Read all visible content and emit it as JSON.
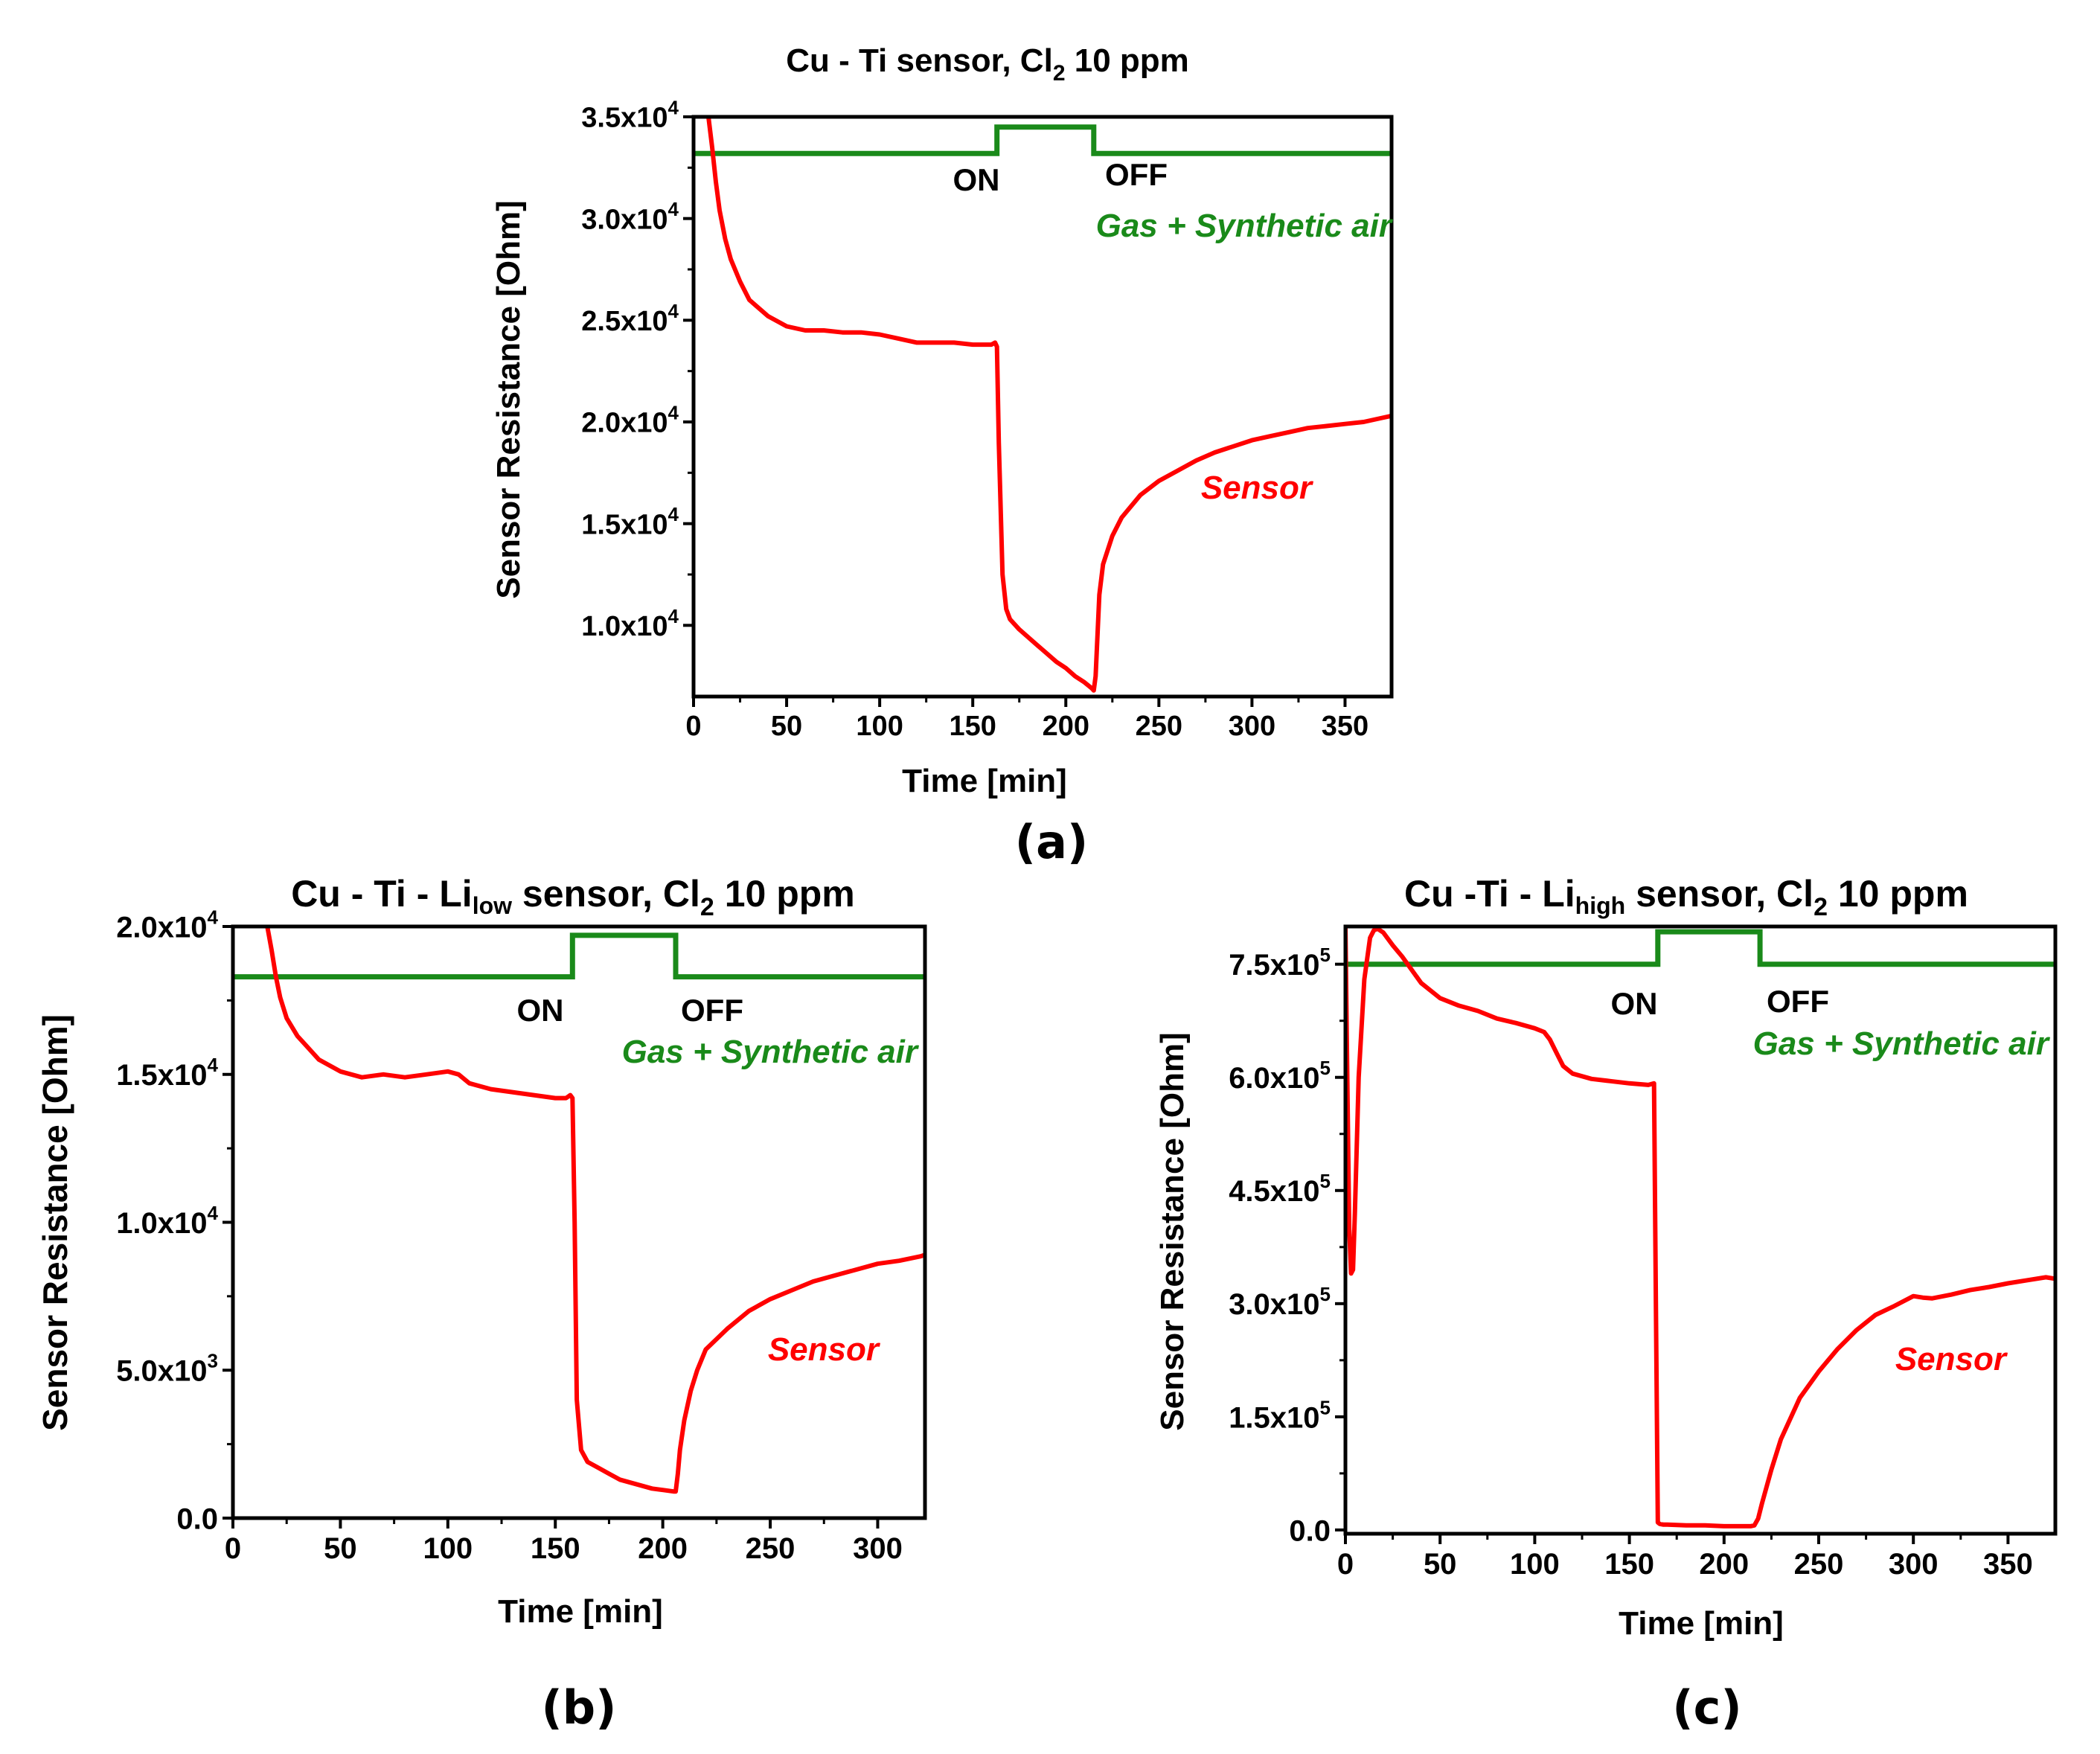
{
  "colors": {
    "sensor": "#ff0000",
    "gas": "#1a8a1a",
    "axis": "#000000",
    "background": "#ffffff"
  },
  "chart_data": [
    {
      "id": "a",
      "type": "line",
      "panel_label": "(a)",
      "title_main": "Cu - Ti sensor, Cl",
      "title_sub": "2",
      "title_tail": " 10 ppm",
      "xlabel": "Time [min]",
      "ylabel": "Sensor Resistance [Ohm]",
      "xlim": [
        0,
        375
      ],
      "ylim": [
        6500,
        35000
      ],
      "xticks": [
        0,
        50,
        100,
        150,
        200,
        250,
        300,
        350
      ],
      "xtick_labels": [
        "0",
        "50",
        "100",
        "150",
        "200",
        "250",
        "300",
        "350"
      ],
      "yticks": [
        10000,
        15000,
        20000,
        25000,
        30000,
        35000
      ],
      "ytick_labels": [
        {
          "mant": "1.0x10",
          "exp": "4"
        },
        {
          "mant": "1.5x10",
          "exp": "4"
        },
        {
          "mant": "2.0x10",
          "exp": "4"
        },
        {
          "mant": "2.5x10",
          "exp": "4"
        },
        {
          "mant": "3.0x10",
          "exp": "4"
        },
        {
          "mant": "3.5x10",
          "exp": "4"
        }
      ],
      "annotations": {
        "on": "ON",
        "off": "OFF",
        "gas": "Gas + Synthetic air",
        "sensor": "Sensor"
      },
      "gas_level_low": 33200,
      "gas_level_high": 34500,
      "gas_on": 163,
      "gas_off": 215,
      "series": [
        {
          "name": "Sensor",
          "x": [
            8,
            10,
            12,
            14,
            17,
            20,
            25,
            30,
            40,
            50,
            60,
            70,
            80,
            90,
            100,
            110,
            120,
            130,
            140,
            150,
            155,
            160,
            162,
            163,
            164,
            166,
            168,
            170,
            175,
            180,
            185,
            190,
            195,
            200,
            205,
            210,
            214,
            215,
            216,
            217,
            218,
            220,
            225,
            230,
            240,
            250,
            260,
            270,
            280,
            290,
            300,
            310,
            320,
            330,
            340,
            350,
            360,
            370,
            375
          ],
          "y": [
            35000,
            33500,
            31800,
            30400,
            29000,
            28000,
            26900,
            26000,
            25200,
            24700,
            24500,
            24500,
            24400,
            24400,
            24300,
            24100,
            23900,
            23900,
            23900,
            23800,
            23800,
            23800,
            23900,
            23700,
            19000,
            12500,
            10800,
            10300,
            9800,
            9400,
            9000,
            8600,
            8200,
            7900,
            7500,
            7200,
            6900,
            6800,
            7500,
            9500,
            11500,
            13000,
            14400,
            15300,
            16400,
            17100,
            17600,
            18100,
            18500,
            18800,
            19100,
            19300,
            19500,
            19700,
            19800,
            19900,
            20000,
            20200,
            20300
          ]
        }
      ]
    },
    {
      "id": "b",
      "type": "line",
      "panel_label": "(b)",
      "title_main": "Cu - Ti - Li",
      "title_sub": "low",
      "title_mid": " sensor, Cl",
      "title_sub2": "2",
      "title_tail": " 10 ppm",
      "xlabel": "Time [min]",
      "ylabel": "Sensor Resistance [Ohm]",
      "xlim": [
        0,
        322
      ],
      "ylim": [
        0,
        20000
      ],
      "xticks": [
        0,
        50,
        100,
        150,
        200,
        250,
        300
      ],
      "xtick_labels": [
        "0",
        "50",
        "100",
        "150",
        "200",
        "250",
        "300"
      ],
      "yticks": [
        0,
        5000,
        10000,
        15000,
        20000
      ],
      "ytick_labels": [
        {
          "mant": "0.0",
          "exp": ""
        },
        {
          "mant": "5.0x10",
          "exp": "3"
        },
        {
          "mant": "1.0x10",
          "exp": "4"
        },
        {
          "mant": "1.5x10",
          "exp": "4"
        },
        {
          "mant": "2.0x10",
          "exp": "4"
        }
      ],
      "annotations": {
        "on": "ON",
        "off": "OFF",
        "gas": "Gas + Synthetic air",
        "sensor": "Sensor"
      },
      "gas_level_low": 18300,
      "gas_level_high": 19700,
      "gas_on": 158,
      "gas_off": 206,
      "series": [
        {
          "name": "Sensor",
          "x": [
            16,
            18,
            20,
            22,
            25,
            30,
            35,
            40,
            50,
            60,
            70,
            80,
            90,
            100,
            105,
            110,
            120,
            130,
            140,
            150,
            155,
            157,
            158,
            159,
            160,
            162,
            165,
            170,
            175,
            180,
            185,
            190,
            195,
            200,
            205,
            206,
            207,
            208,
            210,
            213,
            216,
            220,
            230,
            240,
            250,
            260,
            270,
            280,
            290,
            300,
            310,
            320,
            322
          ],
          "y": [
            20000,
            19200,
            18300,
            17600,
            16900,
            16300,
            15900,
            15500,
            15100,
            14900,
            15000,
            14900,
            15000,
            15100,
            15000,
            14700,
            14500,
            14400,
            14300,
            14200,
            14200,
            14300,
            14200,
            10000,
            4000,
            2300,
            1900,
            1700,
            1500,
            1300,
            1200,
            1100,
            1000,
            950,
            900,
            900,
            1500,
            2300,
            3300,
            4300,
            5000,
            5700,
            6400,
            7000,
            7400,
            7700,
            8000,
            8200,
            8400,
            8600,
            8700,
            8850,
            8900
          ]
        }
      ]
    },
    {
      "id": "c",
      "type": "line",
      "panel_label": "(c)",
      "title_main": "Cu -Ti - Li",
      "title_sub": "high",
      "title_mid": " sensor, Cl",
      "title_sub2": "2",
      "title_tail": " 10 ppm",
      "xlabel": "Time [min]",
      "ylabel": "Sensor Resistance [Ohm]",
      "xlim": [
        0,
        375
      ],
      "ylim": [
        -5000,
        800000
      ],
      "xticks": [
        0,
        50,
        100,
        150,
        200,
        250,
        300,
        350
      ],
      "xtick_labels": [
        "0",
        "50",
        "100",
        "150",
        "200",
        "250",
        "300",
        "350"
      ],
      "yticks": [
        0,
        150000,
        300000,
        450000,
        600000,
        750000
      ],
      "ytick_labels": [
        {
          "mant": "0.0",
          "exp": ""
        },
        {
          "mant": "1.5x10",
          "exp": "5"
        },
        {
          "mant": "3.0x10",
          "exp": "5"
        },
        {
          "mant": "4.5x10",
          "exp": "5"
        },
        {
          "mant": "6.0x10",
          "exp": "5"
        },
        {
          "mant": "7.5x10",
          "exp": "5"
        }
      ],
      "annotations": {
        "on": "ON",
        "off": "OFF",
        "gas": "Gas + Synthetic air",
        "sensor": "Sensor"
      },
      "gas_level_low": 750000,
      "gas_level_high": 793000,
      "gas_on": 165,
      "gas_off": 219,
      "series": [
        {
          "name": "Sensor",
          "x": [
            0,
            1,
            2,
            3,
            4,
            5,
            7,
            10,
            13,
            15,
            17,
            20,
            25,
            30,
            40,
            50,
            60,
            70,
            80,
            90,
            100,
            105,
            108,
            112,
            115,
            120,
            130,
            140,
            150,
            160,
            163,
            164,
            165,
            166,
            168,
            170,
            180,
            190,
            200,
            210,
            214,
            216,
            218,
            220,
            225,
            230,
            240,
            250,
            260,
            270,
            280,
            290,
            300,
            305,
            310,
            320,
            330,
            340,
            350,
            360,
            370,
            375
          ],
          "y": [
            800000,
            600000,
            400000,
            340000,
            345000,
            420000,
            600000,
            730000,
            785000,
            795000,
            797000,
            792000,
            775000,
            760000,
            725000,
            705000,
            695000,
            688000,
            678000,
            672000,
            665000,
            660000,
            650000,
            630000,
            615000,
            605000,
            598000,
            595000,
            592000,
            590000,
            592000,
            300000,
            10000,
            8000,
            7000,
            7000,
            6000,
            6000,
            5000,
            5000,
            5000,
            6000,
            15000,
            35000,
            80000,
            120000,
            175000,
            210000,
            240000,
            265000,
            285000,
            297000,
            310000,
            308000,
            307000,
            312000,
            318000,
            322000,
            327000,
            331000,
            335000,
            333000
          ]
        }
      ]
    }
  ]
}
